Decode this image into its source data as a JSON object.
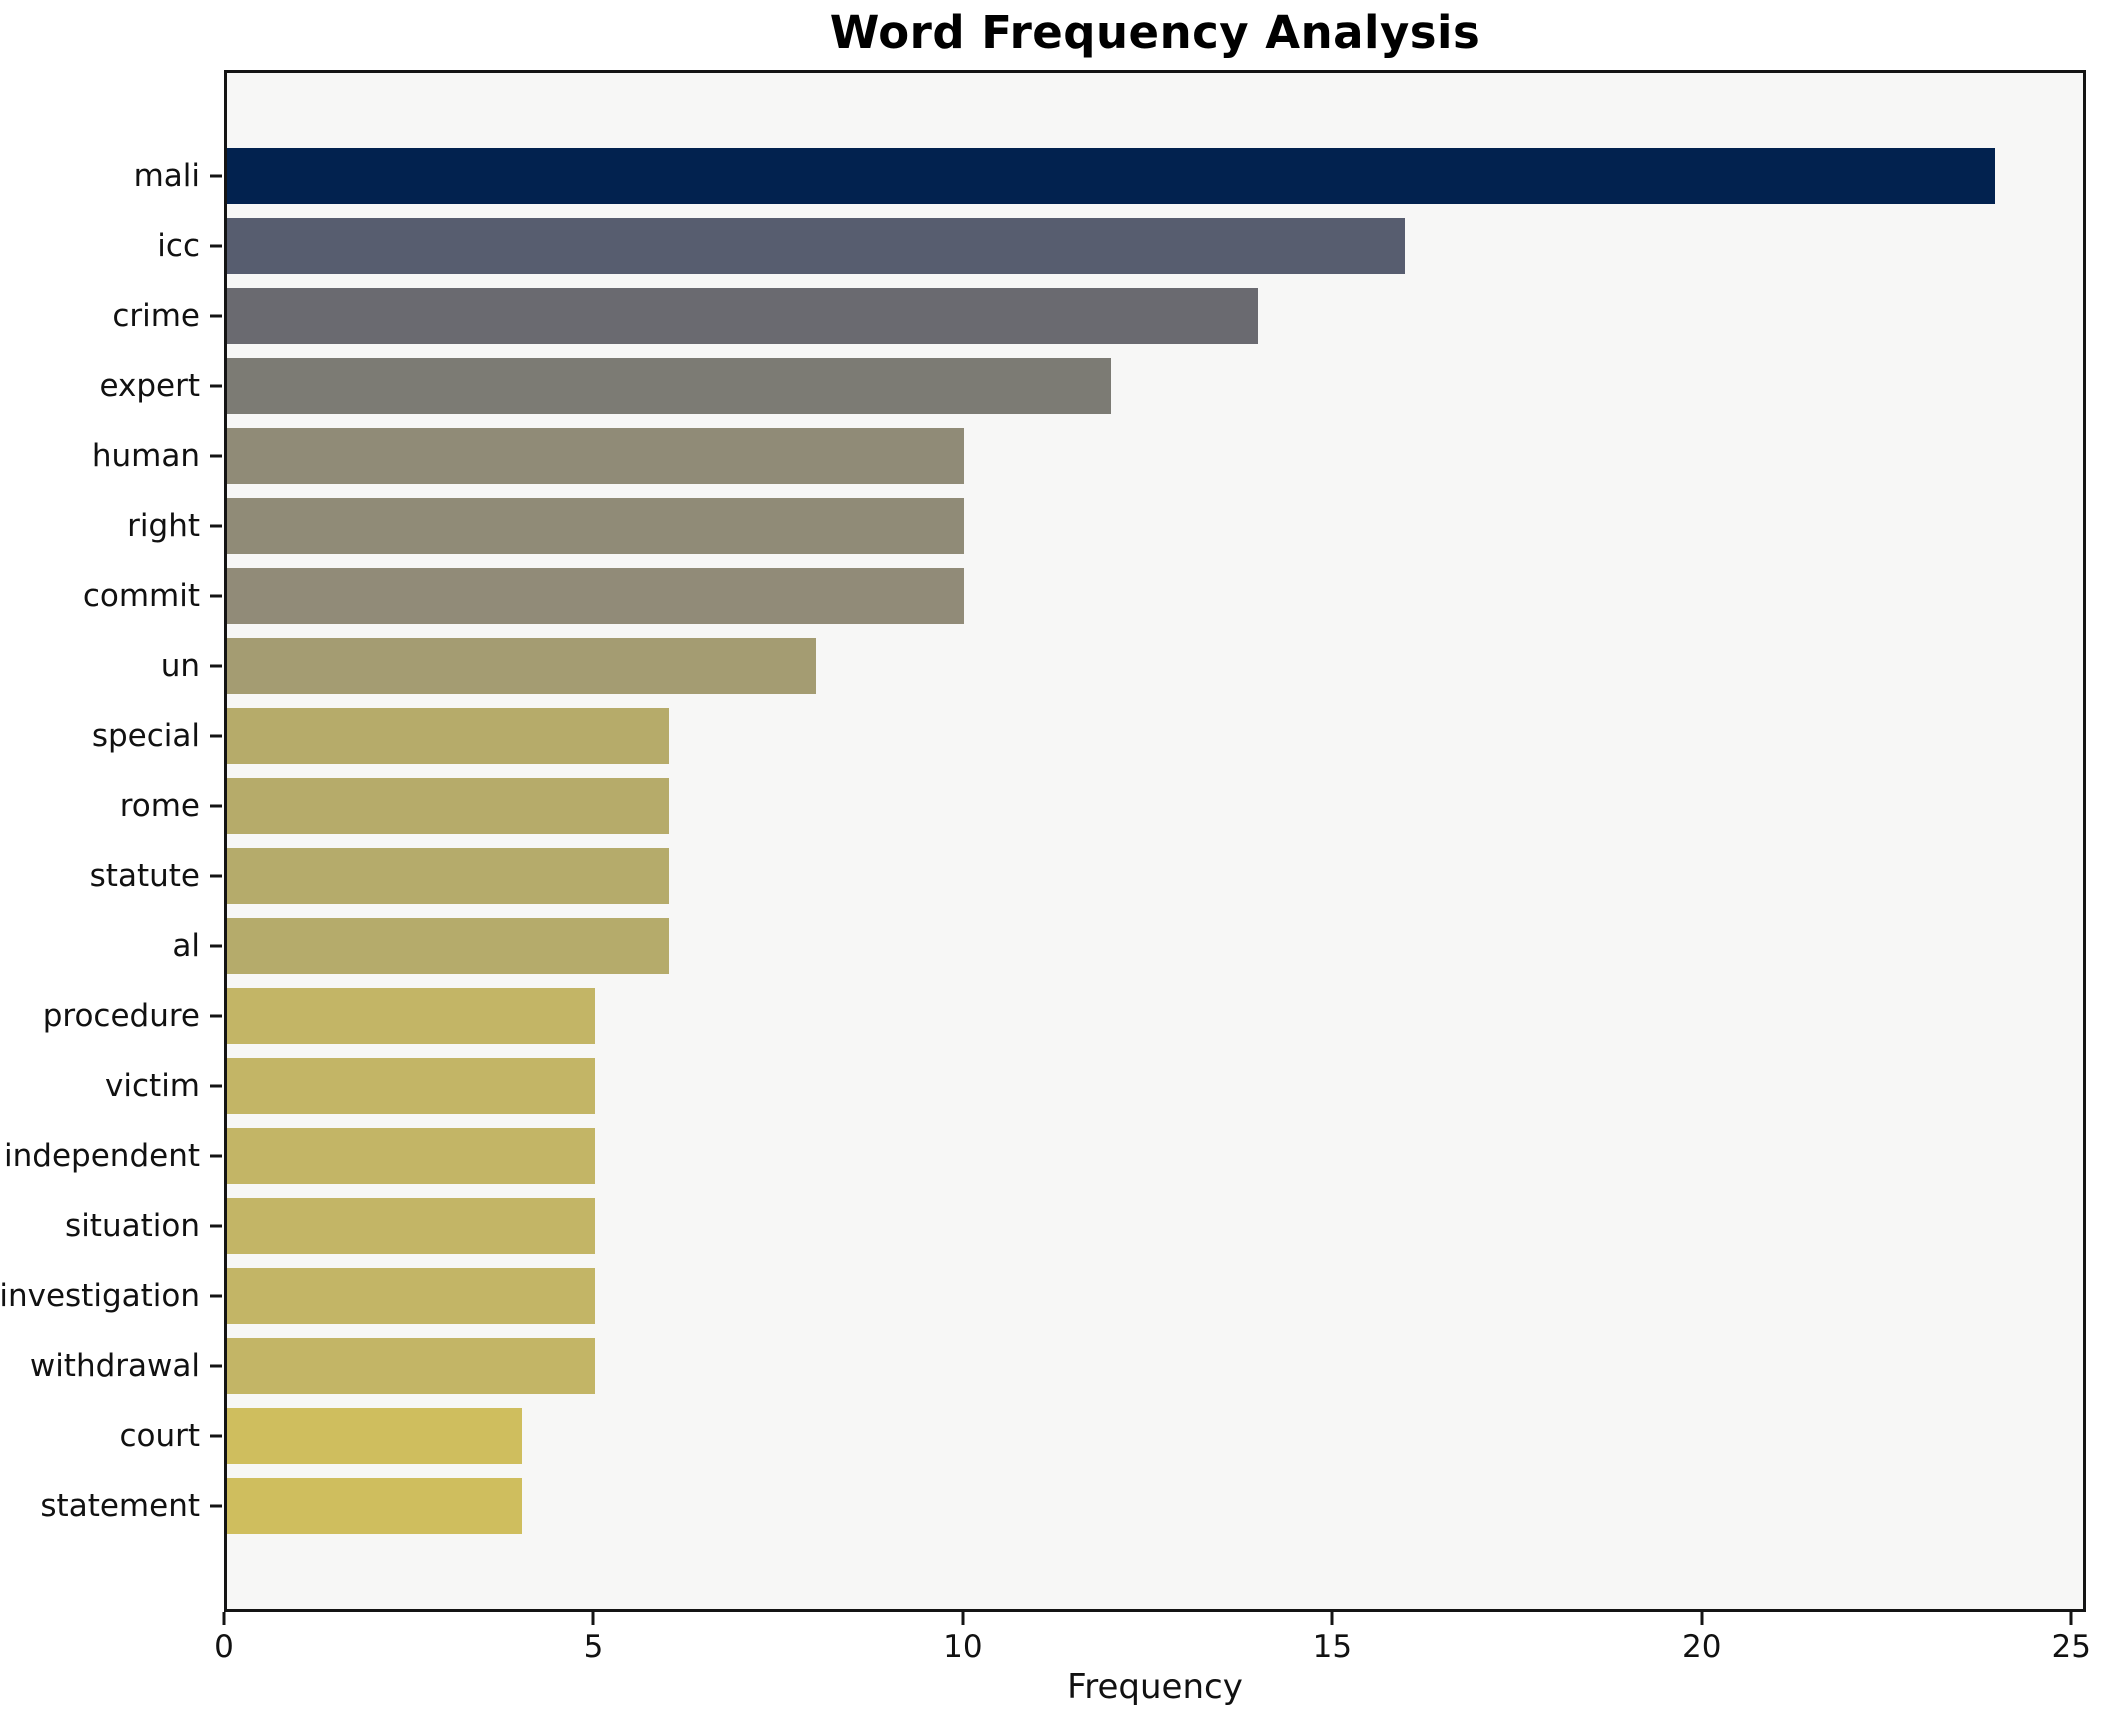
{
  "chart_data": {
    "type": "bar",
    "orientation": "horizontal",
    "title": "Word Frequency Analysis",
    "xlabel": "Frequency",
    "ylabel": "",
    "categories": [
      "mali",
      "icc",
      "crime",
      "expert",
      "human",
      "right",
      "commit",
      "un",
      "special",
      "rome",
      "statute",
      "al",
      "procedure",
      "victim",
      "independent",
      "situation",
      "investigation",
      "withdrawal",
      "court",
      "statement"
    ],
    "values": [
      24,
      16,
      14,
      12,
      10,
      10,
      10,
      8,
      6,
      6,
      6,
      6,
      5,
      5,
      5,
      5,
      5,
      5,
      4,
      4
    ],
    "bar_colors": [
      "#02224f",
      "#575d6f",
      "#6a6a70",
      "#7c7b74",
      "#908b77",
      "#908b77",
      "#918b78",
      "#a49c72",
      "#b6ab6a",
      "#b6ab6a",
      "#b5ab6b",
      "#b5ab6b",
      "#c3b566",
      "#c3b566",
      "#c3b566",
      "#c3b566",
      "#c3b566",
      "#c3b566",
      "#cfbe5e",
      "#cfbe5e"
    ],
    "xticks": [
      0,
      5,
      10,
      15,
      20,
      25
    ],
    "xlim": [
      0,
      25.2
    ],
    "grid": false,
    "legend": "none",
    "plot_background": "#f7f7f6",
    "figure_background": "#ffffff",
    "spine_color": "#141414",
    "bar_height_fraction": 0.8
  }
}
